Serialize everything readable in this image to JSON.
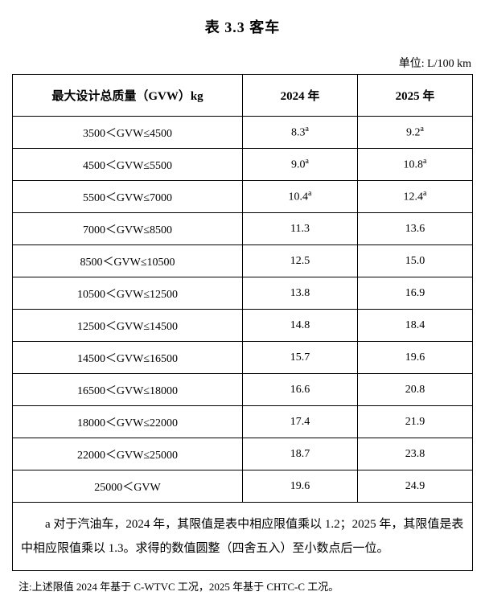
{
  "title": "表 3.3 客车",
  "unit_label": "单位: L/100 km",
  "table": {
    "type": "table",
    "columns": [
      "最大设计总质量（GVW）kg",
      "2024 年",
      "2025 年"
    ],
    "col_widths_pct": [
      50,
      25,
      25
    ],
    "header_fontsize": 15,
    "cell_fontsize": 14,
    "border_color": "#000000",
    "background_color": "#ffffff",
    "rows": [
      {
        "gvw": "3500＜GVW≤4500",
        "y2024": "8.3",
        "y2024_sup": "a",
        "y2025": "9.2",
        "y2025_sup": "a"
      },
      {
        "gvw": "4500＜GVW≤5500",
        "y2024": "9.0",
        "y2024_sup": "a",
        "y2025": "10.8",
        "y2025_sup": "a"
      },
      {
        "gvw": "5500＜GVW≤7000",
        "y2024": "10.4",
        "y2024_sup": "a",
        "y2025": "12.4",
        "y2025_sup": "a"
      },
      {
        "gvw": "7000＜GVW≤8500",
        "y2024": "11.3",
        "y2024_sup": "",
        "y2025": "13.6",
        "y2025_sup": ""
      },
      {
        "gvw": "8500＜GVW≤10500",
        "y2024": "12.5",
        "y2024_sup": "",
        "y2025": "15.0",
        "y2025_sup": ""
      },
      {
        "gvw": "10500＜GVW≤12500",
        "y2024": "13.8",
        "y2024_sup": "",
        "y2025": "16.9",
        "y2025_sup": ""
      },
      {
        "gvw": "12500＜GVW≤14500",
        "y2024": "14.8",
        "y2024_sup": "",
        "y2025": "18.4",
        "y2025_sup": ""
      },
      {
        "gvw": "14500＜GVW≤16500",
        "y2024": "15.7",
        "y2024_sup": "",
        "y2025": "19.6",
        "y2025_sup": ""
      },
      {
        "gvw": "16500＜GVW≤18000",
        "y2024": "16.6",
        "y2024_sup": "",
        "y2025": "20.8",
        "y2025_sup": ""
      },
      {
        "gvw": "18000＜GVW≤22000",
        "y2024": "17.4",
        "y2024_sup": "",
        "y2025": "21.9",
        "y2025_sup": ""
      },
      {
        "gvw": "22000＜GVW≤25000",
        "y2024": "18.7",
        "y2024_sup": "",
        "y2025": "23.8",
        "y2025_sup": ""
      },
      {
        "gvw": "25000＜GVW",
        "y2024": "19.6",
        "y2024_sup": "",
        "y2025": "24.9",
        "y2025_sup": ""
      }
    ],
    "note_a": "a 对于汽油车，2024 年，其限值是表中相应限值乘以 1.2；2025 年，其限值是表中相应限值乘以 1.3。求得的数值圆整（四舍五入）至小数点后一位。"
  },
  "footnote": "注:上述限值 2024 年基于 C-WTVC 工况，2025 年基于 CHTC-C 工况。",
  "colors": {
    "text": "#000000",
    "background": "#ffffff",
    "border": "#000000"
  },
  "typography": {
    "font_family": "SimSun",
    "title_fontsize": 18,
    "title_weight": "bold",
    "body_fontsize": 14,
    "footnote_fontsize": 13
  }
}
